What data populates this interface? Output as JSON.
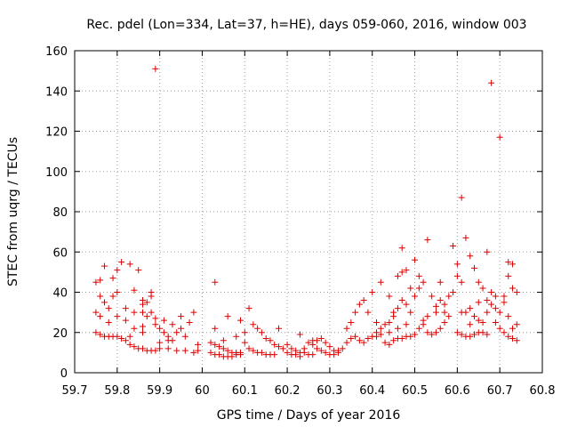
{
  "chart_data": {
    "type": "scatter",
    "title": "Rec. pdel (Lon=334, Lat=37, h=HE), days 059-060, 2016, window 003",
    "xlabel": "GPS time / Days of year 2016",
    "ylabel": "STEC from uqrg / TECUs",
    "xlim": [
      59.7,
      60.8
    ],
    "ylim": [
      0,
      160
    ],
    "xticks": [
      59.7,
      59.8,
      59.9,
      60,
      60.1,
      60.2,
      60.3,
      60.4,
      60.5,
      60.6,
      60.7,
      60.8
    ],
    "xtick_labels": [
      "59.7",
      "59.8",
      "59.9",
      "60",
      "60.1",
      "60.2",
      "60.3",
      "60.4",
      "60.5",
      "60.6",
      "60.7",
      "60.8"
    ],
    "yticks": [
      0,
      20,
      40,
      60,
      80,
      100,
      120,
      140,
      160
    ],
    "ytick_labels": [
      "0",
      "20",
      "40",
      "60",
      "80",
      "100",
      "120",
      "140",
      "160"
    ],
    "grid": true,
    "marker": "+",
    "color": "#dd0000",
    "series": [
      {
        "name": "STEC",
        "points": [
          [
            59.75,
            45
          ],
          [
            59.76,
            46
          ],
          [
            59.77,
            53
          ],
          [
            59.79,
            47
          ],
          [
            59.8,
            51
          ],
          [
            59.81,
            55
          ],
          [
            59.83,
            54
          ],
          [
            59.85,
            51
          ],
          [
            59.76,
            38
          ],
          [
            59.77,
            35
          ],
          [
            59.78,
            32
          ],
          [
            59.79,
            38
          ],
          [
            59.8,
            40
          ],
          [
            59.82,
            32
          ],
          [
            59.84,
            30
          ],
          [
            59.86,
            34
          ],
          [
            59.75,
            30
          ],
          [
            59.76,
            28
          ],
          [
            59.78,
            25
          ],
          [
            59.8,
            28
          ],
          [
            59.82,
            26
          ],
          [
            59.84,
            22
          ],
          [
            59.86,
            20
          ],
          [
            59.88,
            38
          ],
          [
            59.75,
            20
          ],
          [
            59.76,
            19
          ],
          [
            59.77,
            18
          ],
          [
            59.78,
            18
          ],
          [
            59.79,
            18
          ],
          [
            59.8,
            18
          ],
          [
            59.81,
            17
          ],
          [
            59.82,
            16
          ],
          [
            59.83,
            14
          ],
          [
            59.84,
            13
          ],
          [
            59.85,
            12
          ],
          [
            59.86,
            12
          ],
          [
            59.87,
            11
          ],
          [
            59.88,
            11
          ],
          [
            59.89,
            11
          ],
          [
            59.9,
            12
          ],
          [
            59.86,
            30
          ],
          [
            59.87,
            28
          ],
          [
            59.88,
            40
          ],
          [
            59.89,
            24
          ],
          [
            59.9,
            22
          ],
          [
            59.91,
            20
          ],
          [
            59.92,
            18
          ],
          [
            59.93,
            16
          ],
          [
            59.84,
            41
          ],
          [
            59.86,
            36
          ],
          [
            59.87,
            35
          ],
          [
            59.88,
            30
          ],
          [
            59.89,
            27
          ],
          [
            59.91,
            26
          ],
          [
            59.93,
            24
          ],
          [
            59.95,
            22
          ],
          [
            59.89,
            151
          ],
          [
            59.92,
            12
          ],
          [
            59.94,
            11
          ],
          [
            59.96,
            11
          ],
          [
            59.98,
            10
          ],
          [
            59.99,
            11
          ],
          [
            59.95,
            28
          ],
          [
            59.97,
            25
          ],
          [
            59.98,
            30
          ],
          [
            59.96,
            18
          ],
          [
            59.94,
            20
          ],
          [
            59.9,
            15
          ],
          [
            59.92,
            16
          ],
          [
            59.99,
            14
          ],
          [
            59.86,
            23
          ],
          [
            59.83,
            18
          ],
          [
            60.02,
            15
          ],
          [
            60.03,
            14
          ],
          [
            60.04,
            13
          ],
          [
            60.05,
            12
          ],
          [
            60.06,
            11
          ],
          [
            60.07,
            10
          ],
          [
            60.08,
            10
          ],
          [
            60.09,
            9
          ],
          [
            60.02,
            10
          ],
          [
            60.03,
            9
          ],
          [
            60.04,
            9
          ],
          [
            60.05,
            8
          ],
          [
            60.06,
            8
          ],
          [
            60.07,
            8
          ],
          [
            60.08,
            9
          ],
          [
            60.09,
            10
          ],
          [
            60.03,
            45
          ],
          [
            60.03,
            22
          ],
          [
            60.05,
            16
          ],
          [
            60.06,
            28
          ],
          [
            60.08,
            18
          ],
          [
            60.09,
            26
          ],
          [
            60.1,
            20
          ],
          [
            60.11,
            32
          ],
          [
            60.1,
            15
          ],
          [
            60.11,
            12
          ],
          [
            60.12,
            11
          ],
          [
            60.13,
            10
          ],
          [
            60.14,
            10
          ],
          [
            60.15,
            9
          ],
          [
            60.16,
            9
          ],
          [
            60.17,
            9
          ],
          [
            60.12,
            24
          ],
          [
            60.13,
            22
          ],
          [
            60.14,
            20
          ],
          [
            60.15,
            17
          ],
          [
            60.16,
            16
          ],
          [
            60.17,
            14
          ],
          [
            60.18,
            13
          ],
          [
            60.19,
            12
          ],
          [
            60.18,
            22
          ],
          [
            60.2,
            14
          ],
          [
            60.21,
            12
          ],
          [
            60.22,
            11
          ],
          [
            60.23,
            10
          ],
          [
            60.24,
            10
          ],
          [
            60.25,
            9
          ],
          [
            60.26,
            9
          ],
          [
            60.2,
            10
          ],
          [
            60.21,
            9
          ],
          [
            60.22,
            9
          ],
          [
            60.23,
            8
          ],
          [
            60.24,
            12
          ],
          [
            60.25,
            15
          ],
          [
            60.26,
            16
          ],
          [
            60.27,
            16
          ],
          [
            60.23,
            19
          ],
          [
            60.26,
            14
          ],
          [
            60.27,
            12
          ],
          [
            60.28,
            11
          ],
          [
            60.29,
            10
          ],
          [
            60.3,
            9
          ],
          [
            60.31,
            9
          ],
          [
            60.32,
            10
          ],
          [
            60.28,
            17
          ],
          [
            60.29,
            15
          ],
          [
            60.3,
            13
          ],
          [
            60.31,
            11
          ],
          [
            60.32,
            11
          ],
          [
            60.33,
            12
          ],
          [
            60.34,
            15
          ],
          [
            60.35,
            17
          ],
          [
            60.34,
            22
          ],
          [
            60.35,
            25
          ],
          [
            60.36,
            30
          ],
          [
            60.37,
            34
          ],
          [
            60.38,
            36
          ],
          [
            60.39,
            30
          ],
          [
            60.4,
            40
          ],
          [
            60.41,
            25
          ],
          [
            60.36,
            18
          ],
          [
            60.37,
            16
          ],
          [
            60.38,
            15
          ],
          [
            60.39,
            17
          ],
          [
            60.4,
            18
          ],
          [
            60.41,
            20
          ],
          [
            60.42,
            22
          ],
          [
            60.43,
            24
          ],
          [
            60.42,
            45
          ],
          [
            60.44,
            38
          ],
          [
            60.45,
            30
          ],
          [
            60.46,
            48
          ],
          [
            60.47,
            50
          ],
          [
            60.47,
            62
          ],
          [
            60.48,
            51
          ],
          [
            60.49,
            42
          ],
          [
            60.43,
            15
          ],
          [
            60.44,
            14
          ],
          [
            60.45,
            16
          ],
          [
            60.46,
            17
          ],
          [
            60.47,
            17
          ],
          [
            60.48,
            18
          ],
          [
            60.49,
            18
          ],
          [
            60.5,
            19
          ],
          [
            60.44,
            25
          ],
          [
            60.45,
            28
          ],
          [
            60.46,
            32
          ],
          [
            60.47,
            36
          ],
          [
            60.48,
            34
          ],
          [
            60.49,
            30
          ],
          [
            60.5,
            38
          ],
          [
            60.51,
            42
          ],
          [
            60.5,
            56
          ],
          [
            60.51,
            48
          ],
          [
            60.52,
            45
          ],
          [
            60.53,
            66
          ],
          [
            60.54,
            38
          ],
          [
            60.55,
            33
          ],
          [
            60.56,
            45
          ],
          [
            60.57,
            30
          ],
          [
            60.51,
            22
          ],
          [
            60.52,
            24
          ],
          [
            60.53,
            20
          ],
          [
            60.54,
            19
          ],
          [
            60.55,
            20
          ],
          [
            60.56,
            22
          ],
          [
            60.57,
            25
          ],
          [
            60.58,
            28
          ],
          [
            60.56,
            36
          ],
          [
            60.57,
            34
          ],
          [
            60.58,
            38
          ],
          [
            60.59,
            40
          ],
          [
            60.59,
            63
          ],
          [
            60.6,
            54
          ],
          [
            60.6,
            48
          ],
          [
            60.61,
            45
          ],
          [
            60.6,
            20
          ],
          [
            60.61,
            19
          ],
          [
            60.62,
            18
          ],
          [
            60.63,
            18
          ],
          [
            60.64,
            19
          ],
          [
            60.65,
            20
          ],
          [
            60.66,
            20
          ],
          [
            60.67,
            19
          ],
          [
            60.61,
            87
          ],
          [
            60.62,
            67
          ],
          [
            60.63,
            58
          ],
          [
            60.64,
            52
          ],
          [
            60.65,
            45
          ],
          [
            60.66,
            42
          ],
          [
            60.67,
            60
          ],
          [
            60.68,
            40
          ],
          [
            60.62,
            30
          ],
          [
            60.63,
            32
          ],
          [
            60.64,
            28
          ],
          [
            60.65,
            26
          ],
          [
            60.66,
            25
          ],
          [
            60.67,
            30
          ],
          [
            60.68,
            34
          ],
          [
            60.69,
            32
          ],
          [
            60.68,
            144
          ],
          [
            60.7,
            117
          ],
          [
            60.72,
            55
          ],
          [
            60.73,
            54
          ],
          [
            60.72,
            48
          ],
          [
            60.73,
            42
          ],
          [
            60.74,
            40
          ],
          [
            60.71,
            38
          ],
          [
            60.69,
            25
          ],
          [
            60.7,
            22
          ],
          [
            60.71,
            20
          ],
          [
            60.72,
            18
          ],
          [
            60.73,
            17
          ],
          [
            60.74,
            16
          ],
          [
            60.7,
            30
          ],
          [
            60.72,
            28
          ],
          [
            60.74,
            24
          ],
          [
            60.73,
            22
          ],
          [
            60.71,
            35
          ],
          [
            60.69,
            38
          ],
          [
            60.67,
            36
          ],
          [
            60.65,
            35
          ],
          [
            60.63,
            24
          ],
          [
            60.61,
            30
          ],
          [
            60.55,
            30
          ],
          [
            60.53,
            28
          ],
          [
            60.52,
            26
          ],
          [
            60.48,
            24
          ],
          [
            60.46,
            22
          ],
          [
            60.44,
            20
          ],
          [
            60.42,
            19
          ],
          [
            60.41,
            18
          ]
        ]
      }
    ]
  }
}
